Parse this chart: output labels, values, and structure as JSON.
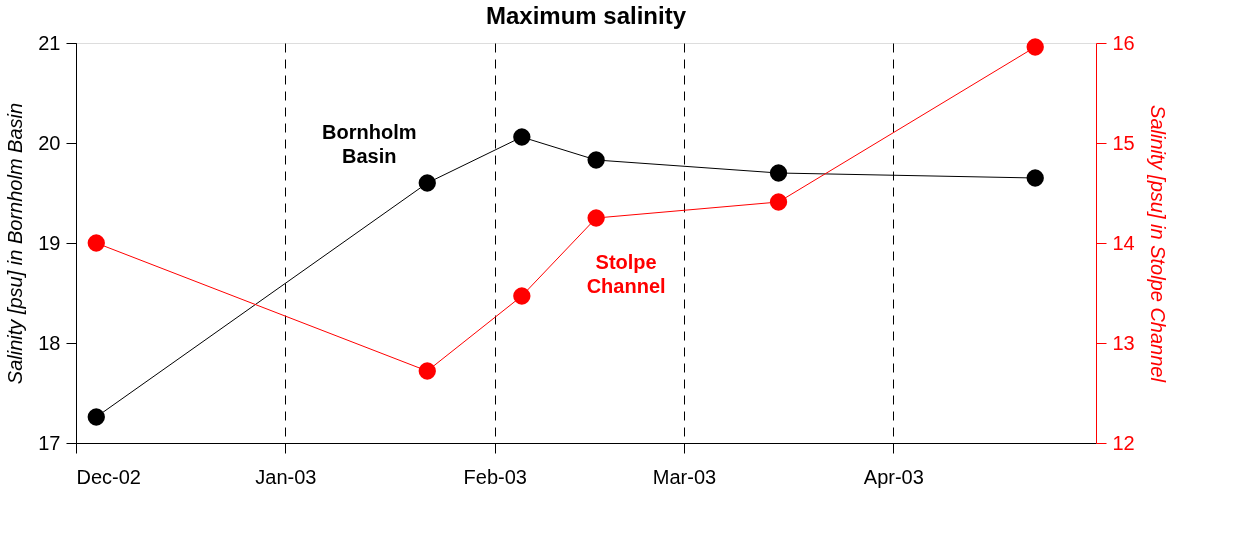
{
  "chart_data": {
    "type": "line",
    "title": "Maximum salinity",
    "ylabel": "Salinity [psu] in Bornholm Basin",
    "y2label": "Salinity [psu] in Stolpe Channel",
    "x": [
      "2002-12-04",
      "2003-01-22",
      "2003-02-05",
      "2003-02-16",
      "2003-03-15",
      "2003-04-22"
    ],
    "series": [
      {
        "name": "Bornholm Basin",
        "color": "#000000",
        "values": [
          17.26,
          19.6,
          20.06,
          19.83,
          19.7,
          19.65
        ]
      },
      {
        "name": "Stolpe Channel",
        "color": "#ff0000",
        "axis": "y2",
        "values": [
          14.0,
          12.72,
          13.47,
          14.25,
          14.41,
          15.96
        ]
      }
    ],
    "xlim": [
      "2002-12-01",
      "2003-05-01"
    ],
    "xticks": [
      {
        "value": "2002-12-01",
        "label": "Dec-02"
      },
      {
        "value": "2003-01-01",
        "label": "Jan-03"
      },
      {
        "value": "2003-02-01",
        "label": "Feb-03"
      },
      {
        "value": "2003-03-01",
        "label": "Mar-03"
      },
      {
        "value": "2003-04-01",
        "label": "Apr-03"
      }
    ],
    "ylim": [
      17,
      21
    ],
    "yticks": [
      17,
      18,
      19,
      20,
      21
    ],
    "y2lim": [
      12,
      16
    ],
    "y2ticks": [
      12,
      13,
      14,
      15,
      16
    ],
    "grid": "x",
    "marker": "circle",
    "line_style": "solid"
  }
}
